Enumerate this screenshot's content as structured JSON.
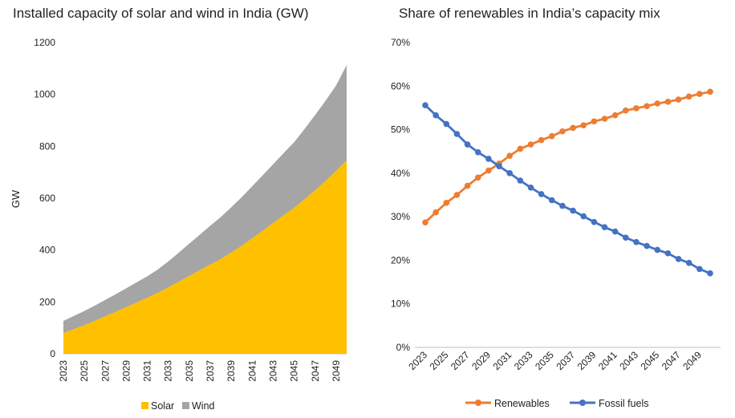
{
  "chart_data": [
    {
      "type": "area",
      "stacked": true,
      "title": "Installed capacity of solar and wind in India (GW)",
      "xlabel": "",
      "ylabel": "GW",
      "ylim": [
        0,
        1200
      ],
      "yticks": [
        0,
        200,
        400,
        600,
        800,
        1000,
        1200
      ],
      "x": [
        2023,
        2024,
        2025,
        2026,
        2027,
        2028,
        2029,
        2030,
        2031,
        2032,
        2033,
        2034,
        2035,
        2036,
        2037,
        2038,
        2039,
        2040,
        2041,
        2042,
        2043,
        2044,
        2045,
        2046,
        2047,
        2048,
        2049,
        2050
      ],
      "xtick_labels": [
        "2023",
        "2025",
        "2027",
        "2029",
        "2031",
        "2033",
        "2035",
        "2037",
        "2039",
        "2041",
        "2043",
        "2045",
        "2047",
        "2049"
      ],
      "grid": false,
      "legend": "bottom",
      "series": [
        {
          "name": "Solar",
          "color": "#FFC000",
          "values": [
            80,
            95,
            110,
            127,
            145,
            162,
            180,
            198,
            216,
            235,
            256,
            278,
            300,
            322,
            344,
            365,
            390,
            416,
            445,
            474,
            504,
            534,
            563,
            596,
            630,
            666,
            705,
            745
          ]
        },
        {
          "name": "Wind",
          "color": "#A5A5A5",
          "values": [
            47,
            51,
            55,
            59,
            63,
            68,
            73,
            78,
            83,
            90,
            100,
            112,
            125,
            137,
            150,
            162,
            175,
            188,
            201,
            214,
            227,
            240,
            253,
            271,
            291,
            310,
            330,
            368
          ]
        }
      ]
    },
    {
      "type": "line",
      "title": "Share of renewables in India’s capacity mix",
      "xlabel": "",
      "ylabel": "",
      "ylim": [
        0,
        70
      ],
      "ytick_labels": [
        "0%",
        "10%",
        "20%",
        "30%",
        "40%",
        "50%",
        "60%",
        "70%"
      ],
      "x": [
        2023,
        2024,
        2025,
        2026,
        2027,
        2028,
        2029,
        2030,
        2031,
        2032,
        2033,
        2034,
        2035,
        2036,
        2037,
        2038,
        2039,
        2040,
        2041,
        2042,
        2043,
        2044,
        2045,
        2046,
        2047,
        2048,
        2049,
        2050
      ],
      "xtick_labels": [
        "2023",
        "2025",
        "2027",
        "2029",
        "2031",
        "2033",
        "2035",
        "2037",
        "2039",
        "2041",
        "2043",
        "2045",
        "2047",
        "2049"
      ],
      "grid": false,
      "legend": "bottom",
      "series": [
        {
          "name": "Renewables",
          "color": "#ED7D31",
          "values": [
            28.7,
            31.0,
            33.2,
            35.0,
            37.1,
            39.0,
            40.6,
            42.2,
            44.0,
            45.6,
            46.6,
            47.6,
            48.5,
            49.6,
            50.4,
            51.0,
            51.9,
            52.5,
            53.3,
            54.4,
            54.9,
            55.4,
            56.0,
            56.4,
            56.9,
            57.6,
            58.2,
            58.7
          ]
        },
        {
          "name": "Fossil fuels",
          "color": "#4472C4",
          "values": [
            55.6,
            53.3,
            51.3,
            49.0,
            46.6,
            44.8,
            43.3,
            41.6,
            40.0,
            38.3,
            36.7,
            35.2,
            33.8,
            32.5,
            31.4,
            30.1,
            28.8,
            27.6,
            26.6,
            25.2,
            24.2,
            23.3,
            22.4,
            21.6,
            20.3,
            19.4,
            18.0,
            17.0
          ]
        }
      ]
    }
  ]
}
